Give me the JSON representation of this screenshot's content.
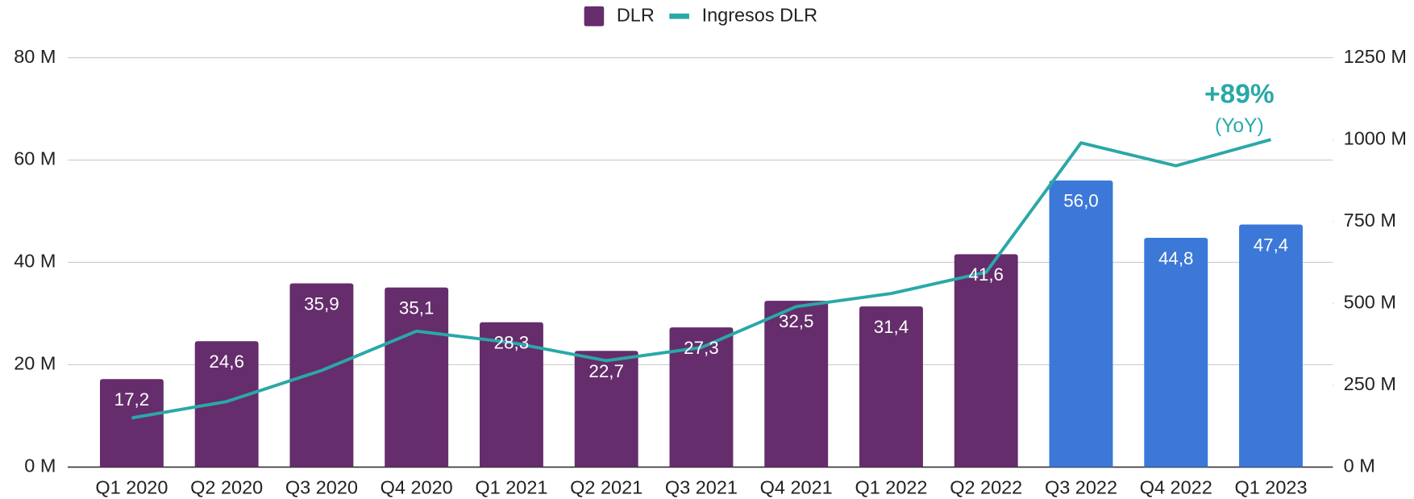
{
  "chart_data": {
    "type": "bar",
    "categories": [
      "Q1 2020",
      "Q2 2020",
      "Q3 2020",
      "Q4 2020",
      "Q1 2021",
      "Q2 2021",
      "Q3 2021",
      "Q4 2021",
      "Q1 2022",
      "Q2 2022",
      "Q3 2022",
      "Q4 2022",
      "Q1 2023"
    ],
    "series": [
      {
        "name": "DLR",
        "type": "bar",
        "color": "#652d6b",
        "colors": [
          "#652d6b",
          "#652d6b",
          "#652d6b",
          "#652d6b",
          "#652d6b",
          "#652d6b",
          "#652d6b",
          "#652d6b",
          "#652d6b",
          "#652d6b",
          "#3c78d8",
          "#3c78d8",
          "#3c78d8"
        ],
        "values": [
          17.2,
          24.6,
          35.9,
          35.1,
          28.3,
          22.7,
          27.3,
          32.5,
          31.4,
          41.6,
          56.0,
          44.8,
          47.4
        ],
        "value_labels": [
          "17,2",
          "24,6",
          "35,9",
          "35,1",
          "28,3",
          "22,7",
          "27,3",
          "32,5",
          "31,4",
          "41,6",
          "56,0",
          "44,8",
          "47,4"
        ]
      },
      {
        "name": "Ingresos DLR",
        "type": "line",
        "axis": "y2",
        "color": "#2aa8a8",
        "values": [
          150,
          200,
          295,
          415,
          380,
          325,
          365,
          490,
          530,
          595,
          990,
          920,
          1000
        ]
      }
    ],
    "ylim": [
      0,
      80
    ],
    "yticks": [
      {
        "value": 0,
        "label": "0 M"
      },
      {
        "value": 20,
        "label": "20 M"
      },
      {
        "value": 40,
        "label": "40 M"
      },
      {
        "value": 60,
        "label": "60 M"
      },
      {
        "value": 80,
        "label": "80 M"
      }
    ],
    "y2lim": [
      0,
      1250
    ],
    "y2ticks": [
      {
        "value": 0,
        "label": "0 M"
      },
      {
        "value": 250,
        "label": "250 M"
      },
      {
        "value": 500,
        "label": "500 M"
      },
      {
        "value": 750,
        "label": "750 M"
      },
      {
        "value": 1000,
        "label": "1000 M"
      },
      {
        "value": 1250,
        "label": "1250 M"
      }
    ],
    "grid": true,
    "legend": "top",
    "annotations": [
      {
        "text": "+89%"
      },
      {
        "text": "(YoY)"
      }
    ]
  }
}
